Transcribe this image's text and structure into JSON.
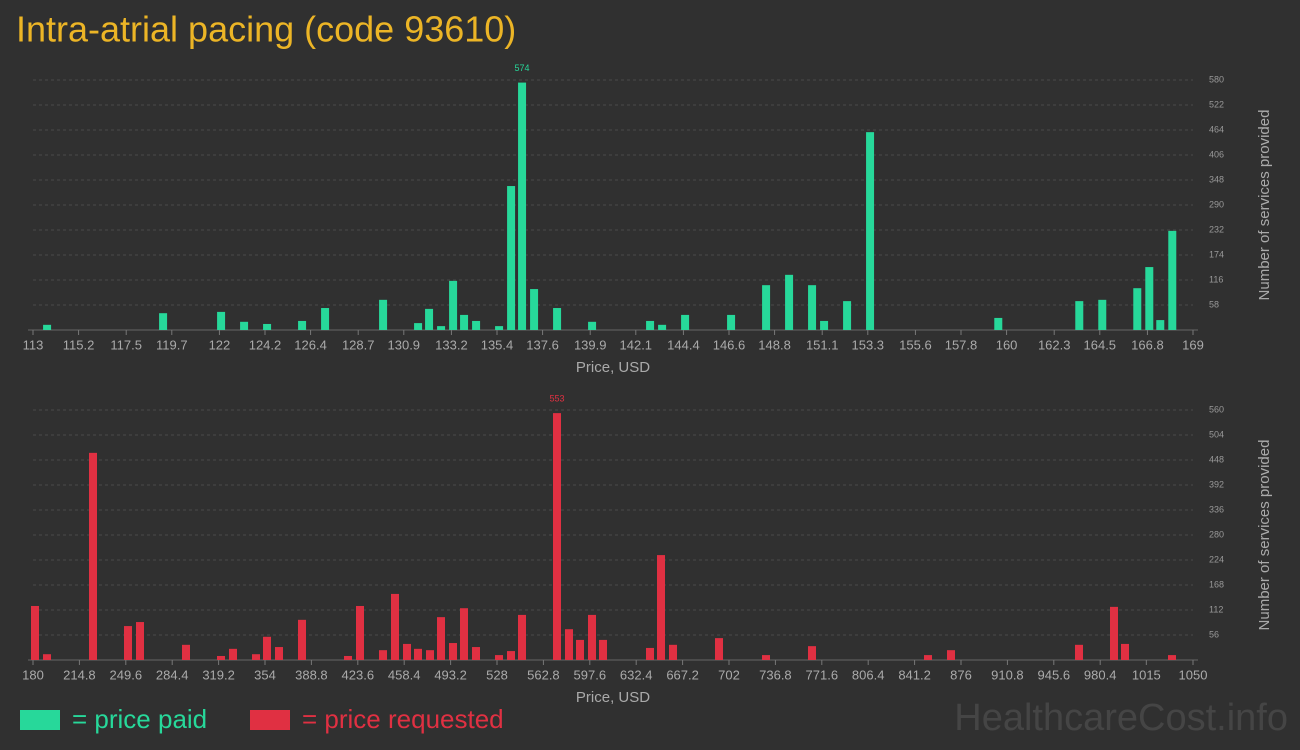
{
  "title": "Intra-atrial pacing (code 93610)",
  "watermark": "HealthcareCost.info",
  "chart_data": [
    {
      "type": "bar",
      "name": "= price paid",
      "color": "#27d89a",
      "x_label": "Price, USD",
      "y_label": "Number of services provided",
      "xlim": [
        113,
        169
      ],
      "ylim": [
        0,
        580
      ],
      "xticks": [
        113,
        115.2,
        117.5,
        119.7,
        122,
        124.2,
        126.4,
        128.7,
        130.9,
        133.2,
        135.4,
        137.6,
        139.9,
        142.1,
        144.4,
        146.6,
        148.8,
        151.1,
        153.3,
        155.6,
        157.8,
        160,
        162.3,
        164.5,
        166.8,
        169
      ],
      "yticks": [
        58,
        116,
        174,
        232,
        290,
        348,
        406,
        464,
        522,
        580
      ],
      "grid": true,
      "x": [
        113.68,
        119.28,
        122.08,
        123.19,
        124.3,
        125.99,
        127.1,
        129.9,
        131.59,
        132.12,
        132.7,
        133.28,
        133.81,
        134.39,
        135.5,
        136.08,
        136.61,
        137.19,
        138.3,
        139.99,
        142.79,
        143.37,
        144.48,
        146.7,
        148.39,
        149.5,
        150.61,
        151.19,
        152.3,
        153.41,
        159.6,
        163.51,
        164.62,
        166.31,
        166.89,
        167.42,
        168.0
      ],
      "values": [
        12,
        39,
        42,
        19,
        14,
        21,
        51,
        70,
        16,
        49,
        9,
        114,
        35,
        21,
        9,
        334,
        574,
        95,
        51,
        19,
        21,
        12,
        35,
        35,
        104,
        128,
        104,
        21,
        67,
        459,
        28,
        67,
        70,
        97,
        146,
        23,
        230
      ]
    },
    {
      "type": "bar",
      "name": "= price requested",
      "color": "#e03042",
      "x_label": "Price, USD",
      "y_label": "Number of services provided",
      "xlim": [
        180,
        1050
      ],
      "ylim": [
        0,
        560
      ],
      "xticks": [
        180,
        214.8,
        249.6,
        284.4,
        319.2,
        354,
        388.8,
        423.6,
        458.4,
        493.2,
        528,
        562.8,
        597.6,
        632.4,
        667.2,
        702,
        736.8,
        771.6,
        806.4,
        841.2,
        876,
        910.8,
        945.6,
        980.4,
        1015,
        1050
      ],
      "yticks": [
        56,
        112,
        168,
        224,
        280,
        336,
        392,
        448,
        504,
        560
      ],
      "grid": true,
      "x": [
        181.5,
        190.5,
        225,
        251.25,
        260.25,
        294.75,
        321,
        330,
        347.25,
        355.5,
        364.5,
        381.75,
        416.25,
        425.25,
        442.5,
        451.5,
        460.5,
        468.75,
        477.75,
        486,
        495,
        503.25,
        512.25,
        529.5,
        538.5,
        546.75,
        573,
        582,
        590.25,
        599.25,
        607.5,
        642.75,
        651,
        660,
        694.5,
        729.75,
        764.25,
        851.25,
        868.5,
        964.5,
        990.75,
        999,
        1034.25
      ],
      "values": [
        121,
        13,
        464,
        76,
        85,
        34,
        9,
        25,
        13,
        52,
        29,
        90,
        9,
        121,
        22,
        148,
        36,
        25,
        22,
        96,
        38,
        116,
        29,
        11,
        20,
        101,
        553,
        69,
        45,
        101,
        45,
        27,
        235,
        34,
        49,
        11,
        31,
        11,
        22,
        34,
        119,
        36,
        11
      ]
    }
  ]
}
